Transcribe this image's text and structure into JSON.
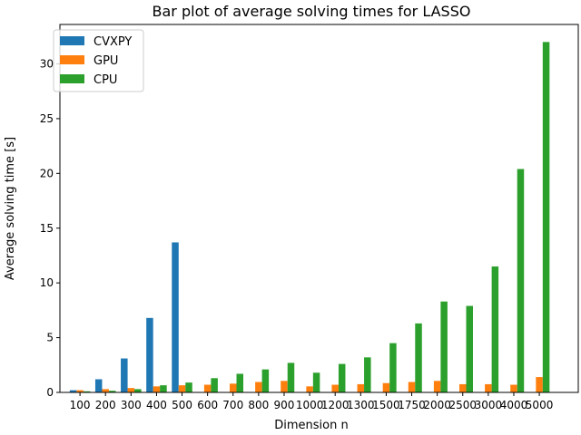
{
  "chart_data": {
    "type": "bar",
    "title": "Bar plot of average solving times for LASSO",
    "xlabel": "Dimension n",
    "ylabel": "Average solving time [s]",
    "categories": [
      "100",
      "200",
      "300",
      "400",
      "500",
      "600",
      "700",
      "800",
      "900",
      "1000",
      "1200",
      "1300",
      "1500",
      "1750",
      "2000",
      "2500",
      "3000",
      "4000",
      "5000"
    ],
    "series": [
      {
        "name": "CVXPY",
        "color": "#1f77b4",
        "values": [
          0.2,
          1.2,
          3.1,
          6.8,
          13.7,
          null,
          null,
          null,
          null,
          null,
          null,
          null,
          null,
          null,
          null,
          null,
          null,
          null,
          null
        ]
      },
      {
        "name": "GPU",
        "color": "#ff7f0e",
        "values": [
          0.2,
          0.3,
          0.4,
          0.55,
          0.65,
          0.7,
          0.8,
          0.95,
          1.05,
          0.55,
          0.7,
          0.75,
          0.85,
          0.95,
          1.05,
          0.75,
          0.75,
          0.7,
          1.4
        ]
      },
      {
        "name": "CPU",
        "color": "#2ca02c",
        "values": [
          0.1,
          0.15,
          0.3,
          0.65,
          0.9,
          1.3,
          1.7,
          2.1,
          2.7,
          1.8,
          2.6,
          3.2,
          4.5,
          6.3,
          8.3,
          7.9,
          11.5,
          20.4,
          32.0
        ]
      }
    ],
    "ylim": [
      0,
      33.6
    ],
    "yticks": [
      0,
      5,
      10,
      15,
      20,
      25,
      30
    ],
    "grid": false,
    "legend_position": "top-left"
  }
}
